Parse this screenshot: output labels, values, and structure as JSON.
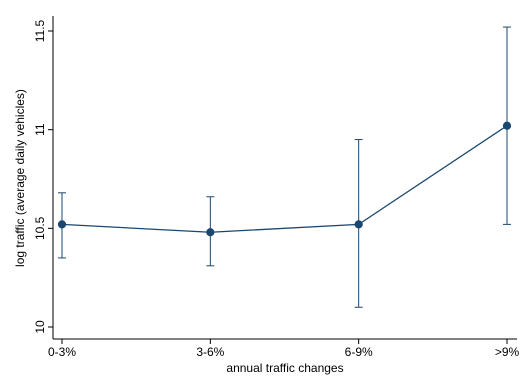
{
  "chart_data": {
    "type": "line",
    "title": "",
    "xlabel": "annual traffic changes",
    "ylabel": "log traffic (average daily vehicles)",
    "categories": [
      "0-3%",
      "3-6%",
      "6-9%",
      ">9%"
    ],
    "ylim": [
      10,
      11.5
    ],
    "yticks": [
      10,
      10.5,
      11,
      11.5
    ],
    "ytick_labels": [
      "10",
      "10.5",
      "11",
      "11.5"
    ],
    "grid": false,
    "legend": "none",
    "series": [
      {
        "values": [
          10.52,
          10.48,
          10.52,
          11.02
        ],
        "ci_low": [
          10.35,
          10.31,
          10.1,
          10.52
        ],
        "ci_high": [
          10.68,
          10.66,
          10.95,
          11.52
        ],
        "color": "#1a476f"
      }
    ]
  }
}
